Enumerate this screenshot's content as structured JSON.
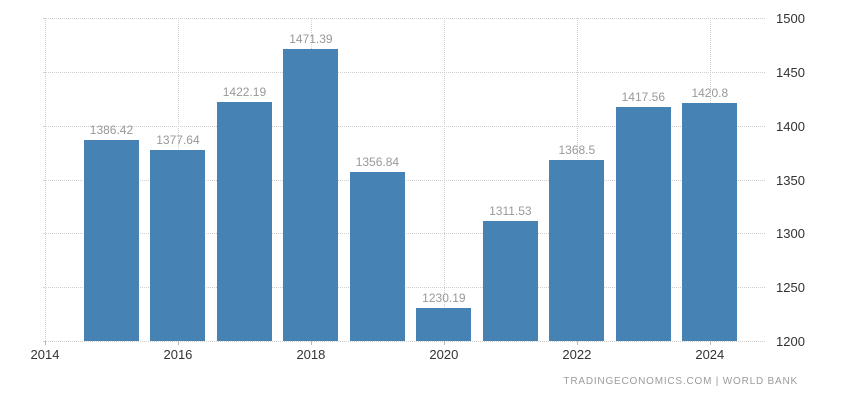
{
  "attribution": "TRADINGECONOMICS.COM | WORLD BANK",
  "chart_data": {
    "type": "bar",
    "title": "",
    "xlabel": "",
    "ylabel": "",
    "categories": [
      2015,
      2016,
      2017,
      2018,
      2019,
      2020,
      2021,
      2022,
      2023,
      2024
    ],
    "values": [
      1386.42,
      1377.64,
      1422.19,
      1471.39,
      1356.84,
      1230.19,
      1311.53,
      1368.5,
      1417.56,
      1420.8
    ],
    "ylim": [
      1200,
      1500
    ],
    "xlim": [
      2013.97,
      2024.83
    ],
    "y_ticks": [
      1200,
      1250,
      1300,
      1350,
      1400,
      1450,
      1500
    ],
    "x_ticks": [
      2014,
      2016,
      2018,
      2020,
      2022,
      2024
    ],
    "grid": true,
    "legend": false,
    "y_axis_side": "right",
    "bar_color": "#4682B4",
    "value_label_color": "#999999",
    "grid_color": "#cfcfcf",
    "tick_label_color": "#333333"
  }
}
